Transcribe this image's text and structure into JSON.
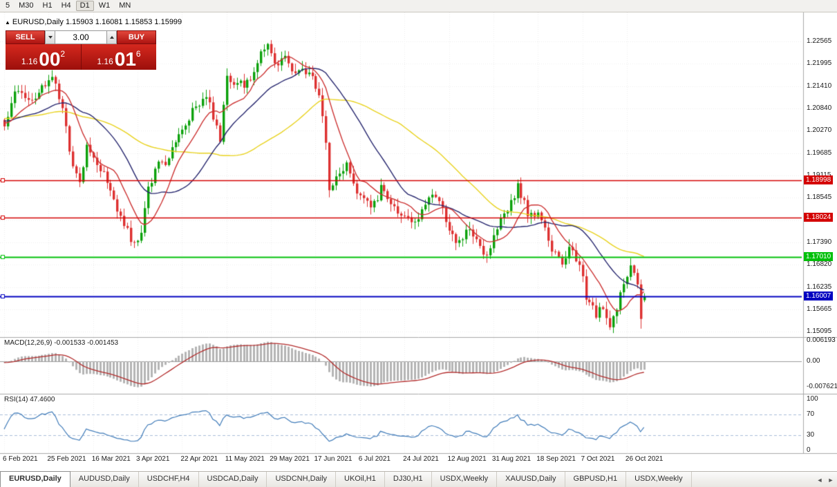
{
  "toolbar": {
    "timeframes": [
      {
        "label": "5",
        "active": false
      },
      {
        "label": "M30",
        "active": false
      },
      {
        "label": "H1",
        "active": false
      },
      {
        "label": "H4",
        "active": false
      },
      {
        "label": "D1",
        "active": true
      },
      {
        "label": "W1",
        "active": false
      },
      {
        "label": "MN",
        "active": false
      }
    ]
  },
  "chart": {
    "marker_icon": "▲",
    "symbol_label": "EURUSD,Daily",
    "ohlc_text": "1.15903 1.16081 1.15853 1.15999"
  },
  "trade_panel": {
    "sell_label": "SELL",
    "buy_label": "BUY",
    "volume": "3.00",
    "sell_price": {
      "small": "1.16",
      "big": "00",
      "sup": "2"
    },
    "buy_price": {
      "small": "1.16",
      "big": "01",
      "sup": "6"
    }
  },
  "price_axis": {
    "ticks": [
      "1.22565",
      "1.21995",
      "1.21410",
      "1.20840",
      "1.20270",
      "1.19685",
      "1.19115",
      "1.18545",
      "1.17960",
      "1.17390",
      "1.16820",
      "1.16235",
      "1.15665",
      "1.15095"
    ]
  },
  "macd": {
    "label": "MACD(12,26,9) -0.001533 -0.001453",
    "ticks": [
      "0.006193",
      "0.00",
      "-0.007621"
    ]
  },
  "rsi": {
    "label": "RSI(14) 47.4600",
    "ticks": [
      "100",
      "70",
      "30",
      "0"
    ],
    "levels": [
      70,
      30
    ]
  },
  "time_axis": [
    {
      "text": "6 Feb 2021",
      "i": 0
    },
    {
      "text": "25 Feb 2021",
      "i": 13
    },
    {
      "text": "16 Mar 2021",
      "i": 26
    },
    {
      "text": "3 Apr 2021",
      "i": 39
    },
    {
      "text": "22 Apr 2021",
      "i": 52
    },
    {
      "text": "11 May 2021",
      "i": 65
    },
    {
      "text": "29 May 2021",
      "i": 78
    },
    {
      "text": "17 Jun 2021",
      "i": 91
    },
    {
      "text": "6 Jul 2021",
      "i": 104
    },
    {
      "text": "24 Jul 2021",
      "i": 117
    },
    {
      "text": "12 Aug 2021",
      "i": 130
    },
    {
      "text": "31 Aug 2021",
      "i": 143
    },
    {
      "text": "18 Sep 2021",
      "i": 156
    },
    {
      "text": "7 Oct 2021",
      "i": 169
    },
    {
      "text": "26 Oct 2021",
      "i": 182
    }
  ],
  "tabs": [
    {
      "label": "EURUSD,Daily",
      "active": true
    },
    {
      "label": "AUDUSD,Daily",
      "active": false
    },
    {
      "label": "USDCHF,H4",
      "active": false
    },
    {
      "label": "USDCAD,Daily",
      "active": false
    },
    {
      "label": "USDCNH,Daily",
      "active": false
    },
    {
      "label": "UKOil,H1",
      "active": false
    },
    {
      "label": "DJ30,H1",
      "active": false
    },
    {
      "label": "USDX,Weekly",
      "active": false
    },
    {
      "label": "XAUUSD,Daily",
      "active": false
    },
    {
      "label": "GBPUSD,H1",
      "active": false
    },
    {
      "label": "USDX,Weekly",
      "active": false
    }
  ],
  "tab_scroll": {
    "left": "◄",
    "right": "►"
  },
  "chart_data": {
    "type": "candlestick",
    "symbol": "EURUSD",
    "timeframe": "Daily",
    "candle_count": 188,
    "pre_history": 60,
    "visible_price_range": [
      1.1497,
      1.2331
    ],
    "close_anchors": [
      [
        -60,
        1.2075
      ],
      [
        -20,
        1.206
      ],
      [
        0,
        1.2048
      ],
      [
        3,
        1.2118
      ],
      [
        5,
        1.212
      ],
      [
        8,
        1.2104
      ],
      [
        11,
        1.2135
      ],
      [
        14,
        1.2165
      ],
      [
        17,
        1.209
      ],
      [
        20,
        1.1925
      ],
      [
        22,
        1.1893
      ],
      [
        24,
        1.1985
      ],
      [
        27,
        1.193
      ],
      [
        29,
        1.1918
      ],
      [
        32,
        1.185
      ],
      [
        35,
        1.179
      ],
      [
        38,
        1.173
      ],
      [
        40,
        1.1775
      ],
      [
        42,
        1.1872
      ],
      [
        45,
        1.195
      ],
      [
        47,
        1.1948
      ],
      [
        52,
        1.2037
      ],
      [
        56,
        1.2089
      ],
      [
        59,
        1.2122
      ],
      [
        61,
        1.206
      ],
      [
        63,
        1.2004
      ],
      [
        65,
        1.2165
      ],
      [
        67,
        1.2147
      ],
      [
        70,
        1.2143
      ],
      [
        73,
        1.2175
      ],
      [
        75,
        1.223
      ],
      [
        77,
        1.225
      ],
      [
        79,
        1.2195
      ],
      [
        82,
        1.2216
      ],
      [
        85,
        1.2166
      ],
      [
        87,
        1.2175
      ],
      [
        89,
        1.2172
      ],
      [
        92,
        1.2125
      ],
      [
        94,
        1.1995
      ],
      [
        95,
        1.1865
      ],
      [
        98,
        1.1925
      ],
      [
        100,
        1.1935
      ],
      [
        103,
        1.1858
      ],
      [
        105,
        1.185
      ],
      [
        107,
        1.1823
      ],
      [
        110,
        1.1876
      ],
      [
        113,
        1.1835
      ],
      [
        116,
        1.1805
      ],
      [
        118,
        1.1795
      ],
      [
        121,
        1.18
      ],
      [
        125,
        1.187
      ],
      [
        128,
        1.1837
      ],
      [
        130,
        1.176
      ],
      [
        133,
        1.1738
      ],
      [
        136,
        1.1778
      ],
      [
        140,
        1.17
      ],
      [
        143,
        1.1752
      ],
      [
        145,
        1.1796
      ],
      [
        148,
        1.184
      ],
      [
        150,
        1.188
      ],
      [
        153,
        1.1817
      ],
      [
        155,
        1.181
      ],
      [
        157,
        1.1805
      ],
      [
        160,
        1.1727
      ],
      [
        163,
        1.1687
      ],
      [
        165,
        1.172
      ],
      [
        168,
        1.1685
      ],
      [
        170,
        1.1595
      ],
      [
        173,
        1.1555
      ],
      [
        175,
        1.1575
      ],
      [
        177,
        1.1532
      ],
      [
        180,
        1.16
      ],
      [
        182,
        1.165
      ],
      [
        183,
        1.169
      ],
      [
        184,
        1.166
      ],
      [
        185,
        1.164
      ],
      [
        186,
        1.1545
      ],
      [
        187,
        1.15999
      ]
    ],
    "last_candle_ohlc": [
      1.15903,
      1.16081,
      1.15853,
      1.15999
    ],
    "prev_candle_low": 1.1517,
    "horizontal_lines": [
      {
        "price": 1.18998,
        "label": "1.18998",
        "color": "#d40000",
        "width": 1.5
      },
      {
        "price": 1.18024,
        "label": "1.18024",
        "color": "#d40000",
        "width": 1.5
      },
      {
        "price": 1.1701,
        "label": "1.17010",
        "color": "#00c00a",
        "width": 2
      },
      {
        "price": 1.16007,
        "label": "1.16007",
        "color": "#0000c0",
        "width": 2
      }
    ],
    "moving_averages": [
      {
        "period": 52,
        "color": "#e8d21e"
      },
      {
        "period": 24,
        "color": "#26266e"
      },
      {
        "period": 10,
        "color": "#cc3333"
      }
    ],
    "macd_settings": {
      "fast": 12,
      "slow": 26,
      "signal": 9,
      "histogram_color": "#b4b4b4",
      "signal_color": "#b22a2a",
      "current_values": [
        -0.001533,
        -0.001453
      ]
    },
    "rsi_settings": {
      "period": 14,
      "color": "#3e7ab8",
      "current_value": 47.46
    },
    "candle_up_color": "#0ba10b",
    "candle_down_color": "#dd3030"
  }
}
